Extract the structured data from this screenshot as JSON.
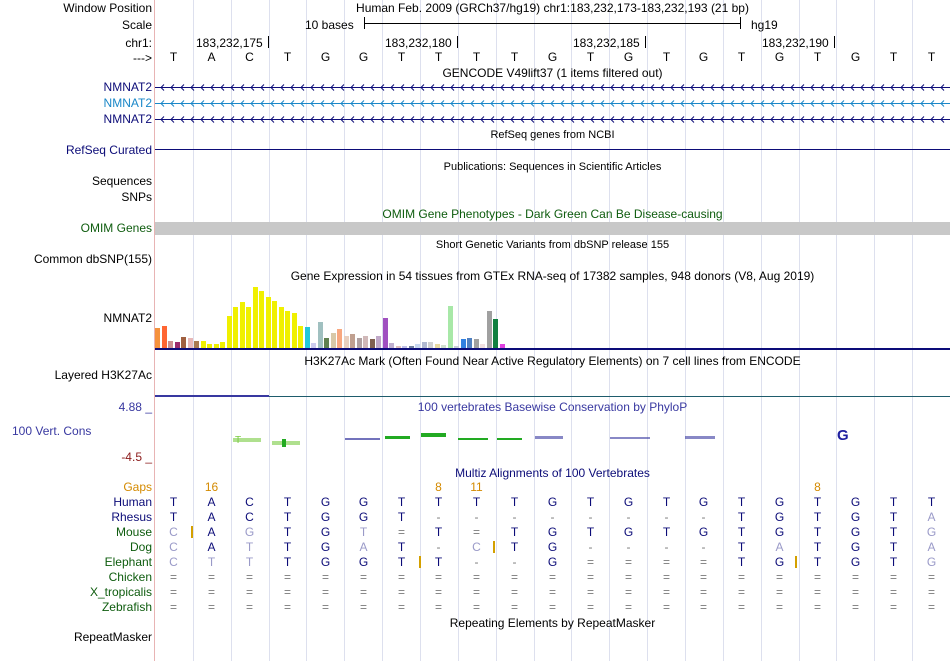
{
  "header": {
    "window_position_label": "Window Position",
    "scale_label": "Scale",
    "chrom_label": "chr1:",
    "strand_label": "--->",
    "assembly_title": "Human Feb. 2009 (GRCh37/hg19)   chr1:183,232,173-183,232,193 (21 bp)",
    "scale_text": "10 bases",
    "genome": "hg19",
    "positions": [
      "183,232,175",
      "183,232,180",
      "183,232,185",
      "183,232,190"
    ]
  },
  "sequence": [
    "T",
    "A",
    "C",
    "T",
    "G",
    "G",
    "T",
    "T",
    "T",
    "T",
    "G",
    "T",
    "G",
    "T",
    "G",
    "T",
    "G",
    "T",
    "G",
    "T",
    "T"
  ],
  "tracks": {
    "gencode": {
      "title": "GENCODE V49lift37 (1 items filtered out)",
      "genes": [
        "NMNAT2",
        "NMNAT2",
        "NMNAT2"
      ],
      "colors": [
        "#0c0c78",
        "#1a87c8",
        "#0c0c78"
      ]
    },
    "refseq": {
      "title": "RefSeq genes from NCBI",
      "label": "RefSeq Curated",
      "color": "#0c0c78"
    },
    "publications": {
      "title": "Publications: Sequences in Scientific Articles",
      "labels": [
        "Sequences",
        "SNPs"
      ]
    },
    "omim": {
      "title": "OMIM Gene Phenotypes - Dark Green Can Be Disease-causing",
      "label": "OMIM Genes",
      "color": "#0e5c0e"
    },
    "dbsnp": {
      "title": "Short Genetic Variants from dbSNP release 155",
      "label": "Common dbSNP(155)"
    },
    "gtex": {
      "title": "Gene Expression in 54 tissues from GTEx RNA-seq of 17382 samples, 948 donors (V8, Aug 2019)",
      "label": "NMNAT2",
      "values": [
        0.32,
        0.36,
        0.12,
        0.1,
        0.18,
        0.16,
        0.12,
        0.12,
        0.06,
        0.06,
        0.1,
        0.52,
        0.66,
        0.74,
        0.66,
        0.98,
        0.92,
        0.82,
        0.76,
        0.66,
        0.6,
        0.56,
        0.36,
        0.34,
        0.08,
        0.42,
        0.16,
        0.24,
        0.3,
        0.2,
        0.22,
        0.16,
        0.2,
        0.14,
        0.2,
        0.48,
        0.08,
        0.04,
        0.04,
        0.04,
        0.06,
        0.1,
        0.1,
        0.06,
        0.05,
        0.68,
        0.04,
        0.14,
        0.16,
        0.14,
        0.06,
        0.6,
        0.46,
        0.06
      ],
      "colors": [
        "#f5913c",
        "#ff6633",
        "#cc8f8f",
        "#9c2b6c",
        "#a06040",
        "#e8b8b8",
        "#a87a50",
        "#f0f000",
        "#f0f000",
        "#f0f000",
        "#f0f000",
        "#f0f000",
        "#f0f000",
        "#f0f000",
        "#f0f000",
        "#f0f000",
        "#f0f000",
        "#f0f000",
        "#f0f000",
        "#f0f000",
        "#f0f000",
        "#f0f000",
        "#f0f000",
        "#22c8d8",
        "#ccccee",
        "#a0c0c0",
        "#608050",
        "#d8c8a8",
        "#f8a880",
        "#e8d0c0",
        "#c0a090",
        "#b0a0a0",
        "#d0b8b8",
        "#806050",
        "#c0a8c8",
        "#a050c0",
        "#c0b0d0",
        "#e0c0c0",
        "#c0c0e8",
        "#7080a0",
        "#c8d8f0",
        "#b0b8d0",
        "#d0d0d0",
        "#e8d8a0",
        "#d0e0d0",
        "#a8e8a8",
        "#c8d0d8",
        "#3080e0",
        "#5080c0",
        "#a0a0a0",
        "#f0e0e0",
        "#a0a0a0",
        "#108040",
        "#e040e0"
      ]
    },
    "h3k27ac": {
      "title": "H3K27Ac Mark (Often Found Near Active Regulatory Elements) on 7 cell lines from ENCODE",
      "label": "Layered H3K27Ac"
    },
    "phylop": {
      "title": "100 vertebrates Basewise Conservation by PhyloP",
      "label": "100 Vert. Cons",
      "max_label": "4.88 _",
      "min_label": "-4.5 _"
    },
    "multiz": {
      "title": "Multiz Alignments of 100 Vertebrates",
      "gaps_label": "Gaps",
      "gap_counts": [
        {
          "index": 1,
          "text": "16"
        },
        {
          "index": 7,
          "text": "8"
        },
        {
          "index": 8,
          "text": "11"
        },
        {
          "index": 17,
          "text": "8"
        }
      ],
      "species": [
        {
          "name": "Human",
          "color": "#0c0c78",
          "bases": [
            "T",
            "A",
            "C",
            "T",
            "G",
            "G",
            "T",
            "T",
            "T",
            "T",
            "G",
            "T",
            "G",
            "T",
            "G",
            "T",
            "G",
            "T",
            "G",
            "T",
            "T"
          ]
        },
        {
          "name": "Rhesus",
          "color": "#0c0c78",
          "bases": [
            "T",
            "A",
            "C",
            "T",
            "G",
            "G",
            "T",
            "-",
            "-",
            "-",
            "-",
            "-",
            "-",
            "-",
            "-",
            "T",
            "G",
            "T",
            "G",
            "T",
            "A"
          ]
        },
        {
          "name": "Mouse",
          "color": "#0e5c0e",
          "bases": [
            "C",
            "A",
            "G",
            "T",
            "G",
            "T",
            "=",
            "T",
            "=",
            "T",
            "G",
            "T",
            "G",
            "T",
            "G",
            "T",
            "G",
            "T",
            "G",
            "T",
            "G"
          ]
        },
        {
          "name": "Dog",
          "color": "#0e5c0e",
          "bases": [
            "C",
            "A",
            "T",
            "T",
            "G",
            "A",
            "T",
            "-",
            "C",
            "T",
            "G",
            "-",
            "-",
            "-",
            "-",
            "T",
            "A",
            "T",
            "G",
            "T",
            "A"
          ]
        },
        {
          "name": "Elephant",
          "color": "#0e5c0e",
          "bases": [
            "C",
            "T",
            "T",
            "T",
            "G",
            "G",
            "T",
            "T",
            "-",
            "-",
            "G",
            "=",
            "=",
            "=",
            "=",
            "T",
            "G",
            "T",
            "G",
            "T",
            "G"
          ]
        },
        {
          "name": "Chicken",
          "color": "#0e5c0e",
          "bases": [
            "=",
            "=",
            "=",
            "=",
            "=",
            "=",
            "=",
            "=",
            "=",
            "=",
            "=",
            "=",
            "=",
            "=",
            "=",
            "=",
            "=",
            "=",
            "=",
            "=",
            "="
          ]
        },
        {
          "name": "X_tropicalis",
          "color": "#0e5c0e",
          "bases": [
            "=",
            "=",
            "=",
            "=",
            "=",
            "=",
            "=",
            "=",
            "=",
            "=",
            "=",
            "=",
            "=",
            "=",
            "=",
            "=",
            "=",
            "=",
            "=",
            "=",
            "="
          ]
        },
        {
          "name": "Zebrafish",
          "color": "#0e5c0e",
          "bases": [
            "=",
            "=",
            "=",
            "=",
            "=",
            "=",
            "=",
            "=",
            "=",
            "=",
            "=",
            "=",
            "=",
            "=",
            "=",
            "=",
            "=",
            "=",
            "=",
            "=",
            "="
          ]
        }
      ]
    },
    "repeatmasker": {
      "title": "Repeating Elements by RepeatMasker",
      "label": "RepeatMasker"
    }
  },
  "colors": {
    "dark_blue": "#0c0c78",
    "light_blue": "#1a87c8",
    "dark_green": "#0e5c0e",
    "orange": "#d48a00",
    "phylop_blue": "#3838a0",
    "phylop_red": "#8b1a1a",
    "grid": "#dde0ee"
  }
}
